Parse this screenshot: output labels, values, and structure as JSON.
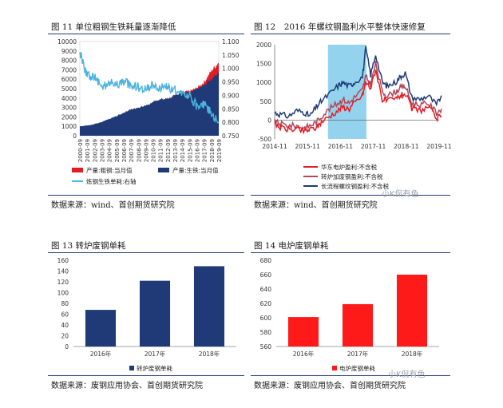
{
  "panels": {
    "fig11": {
      "header": "图 11 单位粗钢生铁耗量逐渐降低",
      "source": "数据来源：wind、首创期货研究院"
    },
    "fig12": {
      "header": "图 12　2016 年螺纹钢盈利水平整体快速修复",
      "source": "数据来源：wind、首创期货研究院"
    },
    "fig13": {
      "header": "图 13 转炉废钢单耗",
      "source": "数据来源：废钢应用协会、首创期货研究院"
    },
    "fig14": {
      "header": "图 14 电炉废钢单耗",
      "source": "数据来源：废钢应用协会、首创期货研究院"
    }
  },
  "watermarks": [
    "小K侃有色",
    "小K侃有色"
  ],
  "chart_data": [
    {
      "id": "fig11",
      "type": "area",
      "x_ticks": [
        "2000-09",
        "2001-09",
        "2002-09",
        "2003-09",
        "2004-09",
        "2005-09",
        "2006-09",
        "2007-09",
        "2008-09",
        "2009-09",
        "2010-09",
        "2011-09",
        "2012-09",
        "2013-09",
        "2014-09",
        "2015-09",
        "2016-09",
        "2017-09",
        "2018-09",
        "2019-09"
      ],
      "y_ticks": [
        0,
        1000,
        2000,
        3000,
        4000,
        5000,
        6000,
        7000,
        8000,
        9000,
        10000
      ],
      "ylim": [
        0,
        10000
      ],
      "y2_ticks": [
        "0.750",
        "0.800",
        "0.850",
        "0.900",
        "0.950",
        "1.000",
        "1.050",
        "1.100"
      ],
      "y2lim": [
        0.75,
        1.1
      ],
      "series": [
        {
          "name": "产量:粗钢:当月值",
          "color": "#e31c24",
          "values": [
            1000,
            1080,
            1200,
            1400,
            1650,
            1950,
            2300,
            2650,
            2900,
            3100,
            3450,
            3750,
            3850,
            4150,
            4600,
            4700,
            5050,
            5700,
            6900,
            7800
          ]
        },
        {
          "name": "产量:生铁:当月值",
          "color": "#1f3a76",
          "values": [
            1000,
            1090,
            1230,
            1480,
            1780,
            2100,
            2450,
            2800,
            2950,
            3200,
            3550,
            3850,
            3950,
            4300,
            4600,
            4600,
            4950,
            5350,
            6000,
            6700
          ]
        },
        {
          "name": "炼钢生铁单耗:右轴",
          "color": "#4ab3e0",
          "axis": "right",
          "values": [
            1.06,
            0.97,
            0.97,
            0.93,
            0.95,
            0.94,
            0.95,
            0.94,
            0.93,
            0.92,
            0.94,
            0.93,
            0.93,
            0.92,
            0.91,
            0.9,
            0.86,
            0.87,
            0.83,
            0.8
          ]
        }
      ]
    },
    {
      "id": "fig12",
      "type": "line",
      "x_ticks": [
        "2014-11",
        "2015-11",
        "2016-11",
        "2017-11",
        "2018-11",
        "2019-11"
      ],
      "y_ticks": [
        -500,
        0,
        500,
        1000,
        1500,
        2000
      ],
      "ylim": [
        -500,
        2000
      ],
      "highlight": {
        "from": "2016-06",
        "to": "2017-08",
        "color": "#87ceeb"
      },
      "series": [
        {
          "name": "华东电炉盈利:不含税",
          "color": "#e31c24",
          "x": [
            2014.83,
            2015.0,
            2015.25,
            2015.5,
            2015.75,
            2015.9,
            2016.1,
            2016.25,
            2016.5,
            2016.75,
            2016.9,
            2017.1,
            2017.25,
            2017.5,
            2017.6,
            2017.75,
            2017.9,
            2018.1,
            2018.25,
            2018.5,
            2018.65,
            2018.8,
            2019.0,
            2019.25,
            2019.5,
            2019.75,
            2019.9
          ],
          "values": [
            -100,
            -200,
            -250,
            -250,
            -300,
            -250,
            -200,
            -50,
            100,
            250,
            350,
            300,
            450,
            650,
            1000,
            850,
            1350,
            550,
            500,
            550,
            650,
            700,
            300,
            250,
            350,
            50,
            100
          ]
        },
        {
          "name": "转炉加废钢盈利:不含税",
          "color": "#b0485a",
          "x": [
            2014.83,
            2015.0,
            2015.25,
            2015.5,
            2015.75,
            2015.9,
            2016.1,
            2016.25,
            2016.5,
            2016.75,
            2016.9,
            2017.1,
            2017.25,
            2017.5,
            2017.6,
            2017.75,
            2017.9,
            2018.1,
            2018.25,
            2018.5,
            2018.65,
            2018.8,
            2019.0,
            2019.25,
            2019.5,
            2019.75,
            2019.9
          ],
          "values": [
            -50,
            -100,
            -150,
            -150,
            -200,
            -150,
            -50,
            100,
            300,
            450,
            550,
            450,
            600,
            800,
            1150,
            950,
            1500,
            750,
            650,
            750,
            850,
            900,
            450,
            400,
            450,
            200,
            300
          ]
        },
        {
          "name": "长流程螺纹钢盈利:不含税",
          "color": "#1f3a76",
          "x": [
            2014.83,
            2015.0,
            2015.25,
            2015.5,
            2015.75,
            2015.9,
            2016.1,
            2016.25,
            2016.5,
            2016.75,
            2016.9,
            2017.1,
            2017.25,
            2017.5,
            2017.6,
            2017.75,
            2017.9,
            2018.1,
            2018.25,
            2018.5,
            2018.65,
            2018.8,
            2019.0,
            2019.25,
            2019.5,
            2019.75,
            2019.9
          ],
          "values": [
            200,
            150,
            100,
            250,
            200,
            100,
            350,
            500,
            700,
            900,
            1000,
            900,
            1000,
            1150,
            1900,
            1200,
            1750,
            1000,
            900,
            1000,
            1150,
            1250,
            600,
            550,
            650,
            400,
            650
          ]
        }
      ]
    },
    {
      "id": "fig13",
      "type": "bar",
      "categories": [
        "2016年",
        "2017年",
        "2018年"
      ],
      "y_ticks": [
        0,
        20,
        40,
        60,
        80,
        100,
        120,
        140,
        160
      ],
      "ylim": [
        0,
        160
      ],
      "series": [
        {
          "name": "转炉废钢单耗",
          "color": "#1f3a76",
          "values": [
            68,
            122,
            149
          ]
        }
      ]
    },
    {
      "id": "fig14",
      "type": "bar",
      "categories": [
        "2016年",
        "2017年",
        "2018年"
      ],
      "y_ticks": [
        560,
        580,
        600,
        620,
        640,
        660,
        680
      ],
      "ylim": [
        560,
        680
      ],
      "series": [
        {
          "name": "电炉废钢单耗",
          "color": "#ff1a1a",
          "values": [
            601,
            619,
            660
          ]
        }
      ]
    }
  ]
}
